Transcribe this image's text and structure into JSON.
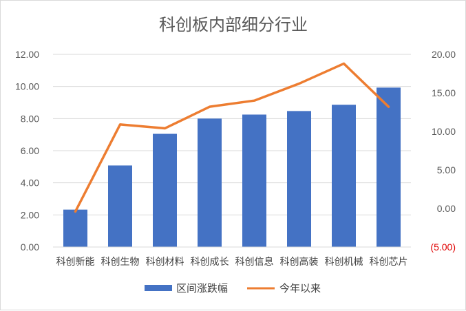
{
  "chart_data": {
    "type": "bar",
    "title": "科创板内部细分行业",
    "categories": [
      "科创新能",
      "科创生物",
      "科创材料",
      "科创成长",
      "科创信息",
      "科创高装",
      "科创机械",
      "科创芯片"
    ],
    "series": [
      {
        "name": "区间涨跌幅",
        "type": "bar",
        "axis": "left",
        "color": "#4472C4",
        "values": [
          2.33,
          5.08,
          7.05,
          8.0,
          8.25,
          8.47,
          8.86,
          9.93
        ]
      },
      {
        "name": "今年以来",
        "type": "line",
        "axis": "right",
        "color": "#ED7D31",
        "values": [
          -0.4,
          10.9,
          10.4,
          13.2,
          14.0,
          16.2,
          18.8,
          13.2
        ]
      }
    ],
    "y_left": {
      "ylim": [
        0,
        12
      ],
      "ticks": [
        "0.00",
        "2.00",
        "4.00",
        "6.00",
        "8.00",
        "10.00",
        "12.00"
      ]
    },
    "y_right": {
      "ylim": [
        -5,
        20
      ],
      "ticks": [
        "(5.00)",
        "0.00",
        "5.00",
        "10.00",
        "15.00",
        "20.00"
      ],
      "negative_color": "#e00000"
    },
    "grid": true,
    "gridline_color": "#d9d9d9",
    "legend_position": "bottom"
  }
}
